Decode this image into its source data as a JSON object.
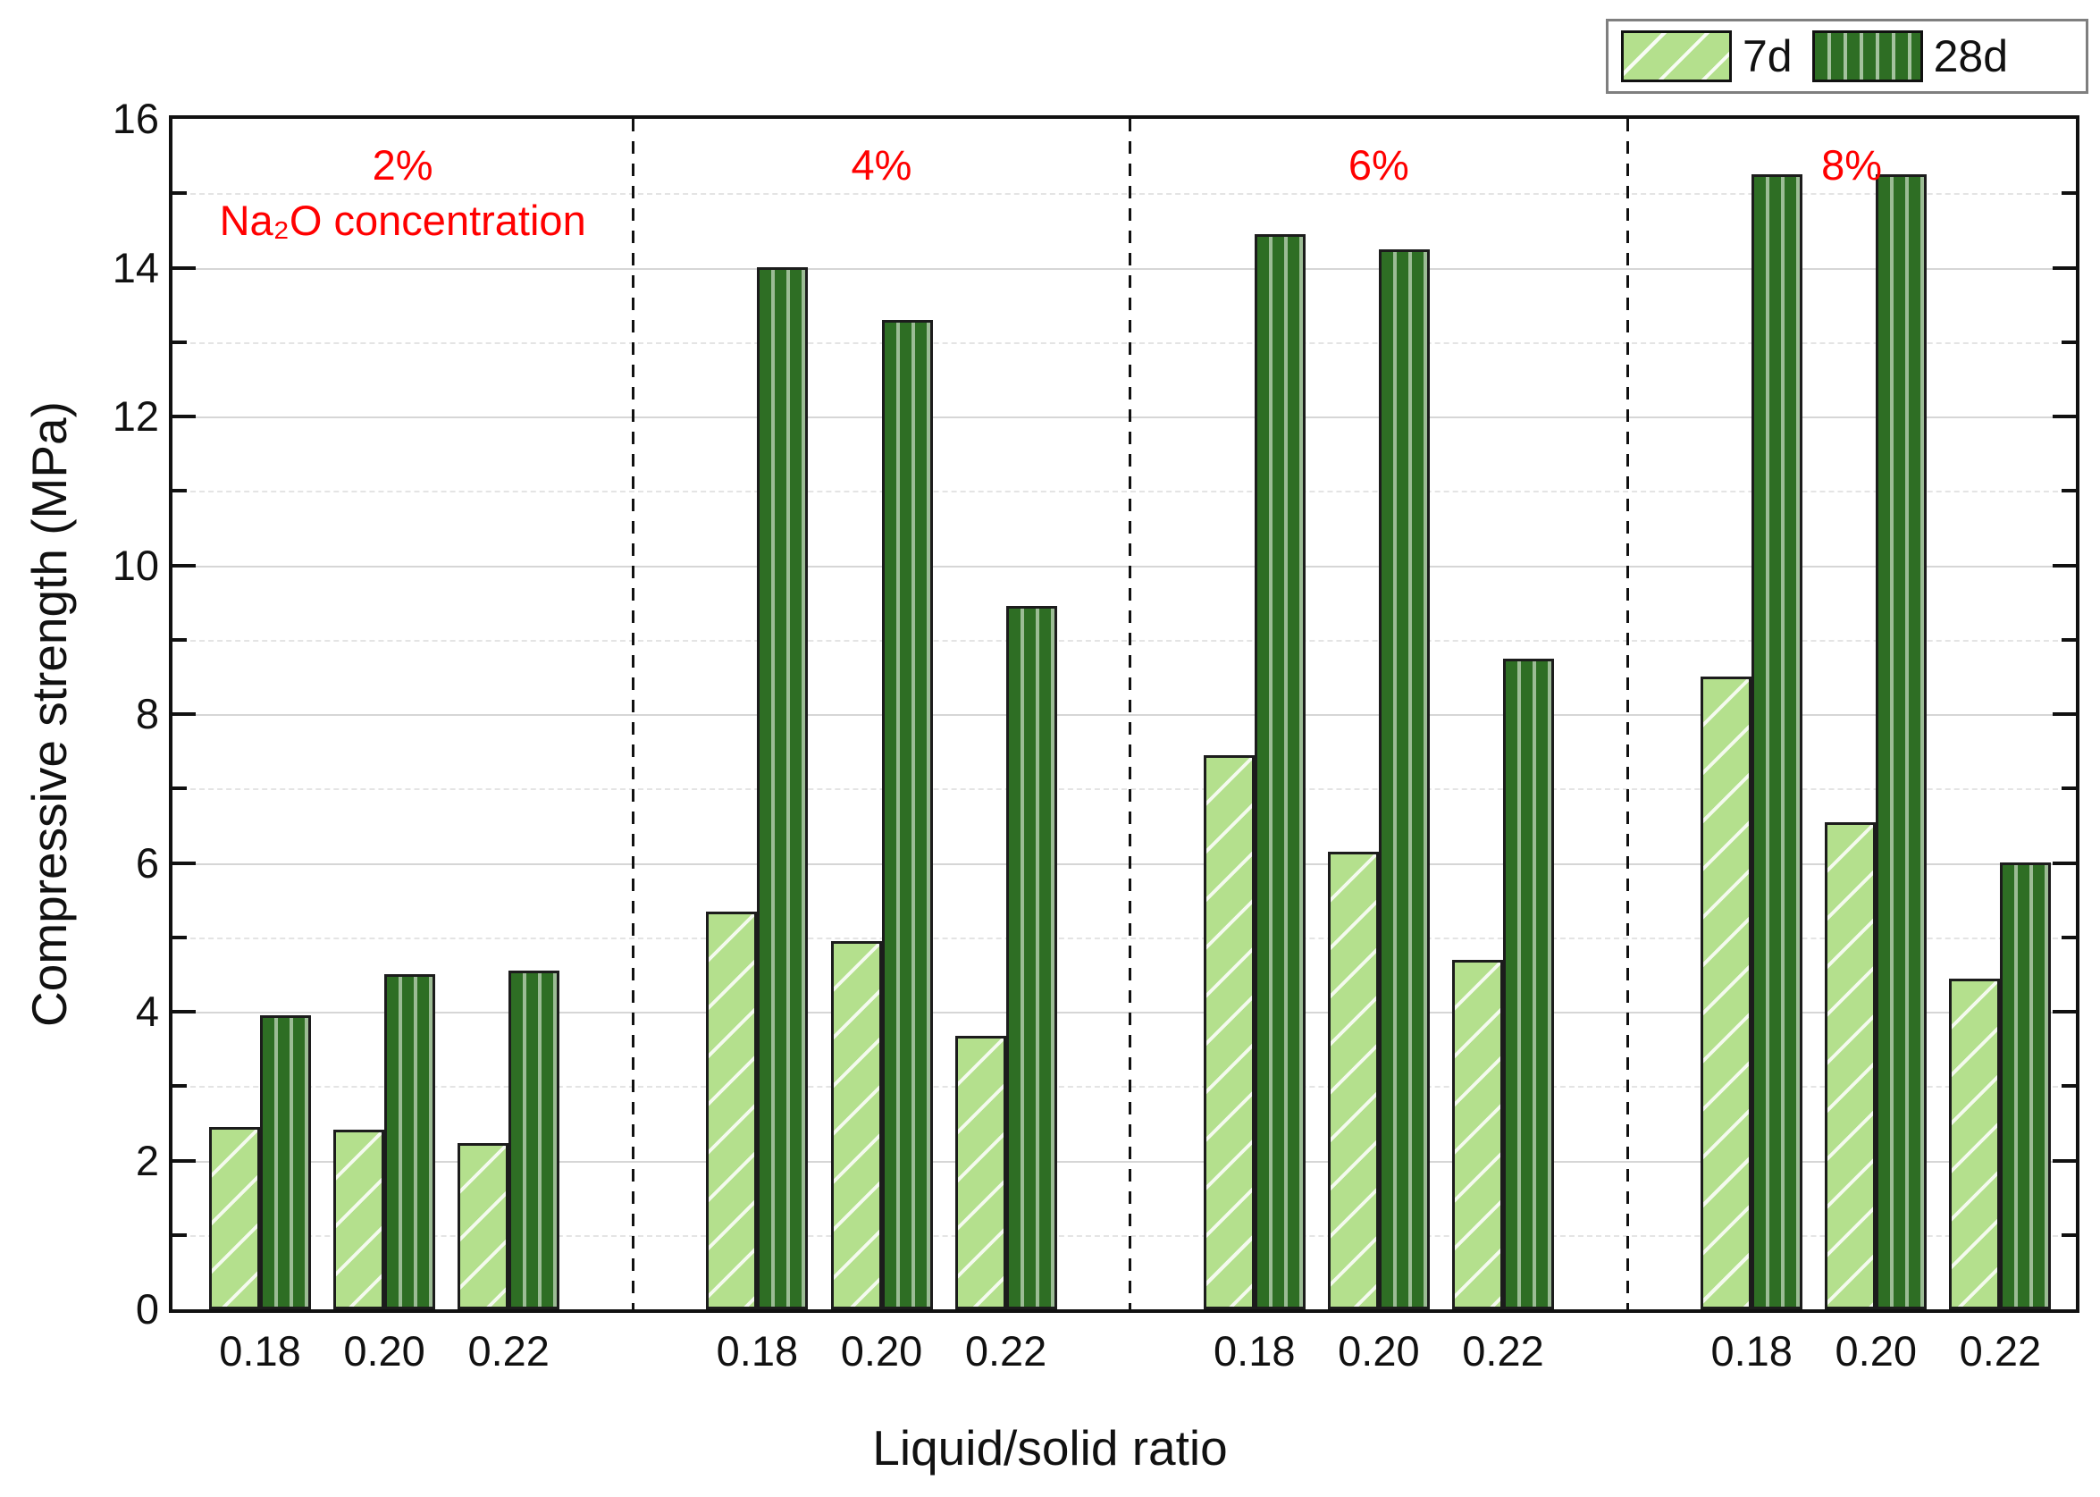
{
  "chart_data": {
    "type": "bar",
    "title": "",
    "xlabel": "Liquid/solid ratio",
    "ylabel": "Compressive strength (MPa)",
    "ylim": [
      0,
      16
    ],
    "y_major_tick_step": 2,
    "y_minor_tick_step": 1,
    "y_tick_labels": [
      "0",
      "2",
      "4",
      "6",
      "8",
      "10",
      "12",
      "14",
      "16"
    ],
    "grid": {
      "major": "solid-horizontal",
      "minor": "dashed-horizontal"
    },
    "legend": {
      "position": "top-right",
      "entries": [
        "7d",
        "28d"
      ]
    },
    "annotation_color": "#ff0000",
    "groups": [
      {
        "label": "2%",
        "sublabel": "Na₂O concentration",
        "categories": [
          "0.18",
          "0.20",
          "0.22"
        ],
        "series": [
          {
            "name": "7d",
            "values": [
              2.45,
              2.42,
              2.23
            ]
          },
          {
            "name": "28d",
            "values": [
              3.95,
              4.5,
              4.55
            ]
          }
        ]
      },
      {
        "label": "4%",
        "categories": [
          "0.18",
          "0.20",
          "0.22"
        ],
        "series": [
          {
            "name": "7d",
            "values": [
              5.35,
              4.95,
              3.68
            ]
          },
          {
            "name": "28d",
            "values": [
              14.0,
              13.3,
              9.45
            ]
          }
        ]
      },
      {
        "label": "6%",
        "categories": [
          "0.18",
          "0.20",
          "0.22"
        ],
        "series": [
          {
            "name": "7d",
            "values": [
              7.45,
              6.15,
              4.7
            ]
          },
          {
            "name": "28d",
            "values": [
              14.45,
              14.25,
              8.75
            ]
          }
        ]
      },
      {
        "label": "8%",
        "categories": [
          "0.18",
          "0.20",
          "0.22"
        ],
        "series": [
          {
            "name": "7d",
            "values": [
              8.5,
              6.55,
              4.45
            ]
          },
          {
            "name": "28d",
            "values": [
              15.25,
              15.25,
              6.0
            ]
          }
        ]
      }
    ],
    "colors": {
      "series_7d_fill": "#b4e08d",
      "series_28d_fill": "#2e6e24",
      "bar_border": "#1c1c1c",
      "annotation": "#ff0000",
      "grid_major": "#d6d6d6",
      "grid_minor": "#e4e4e4",
      "frame": "#111111"
    }
  }
}
